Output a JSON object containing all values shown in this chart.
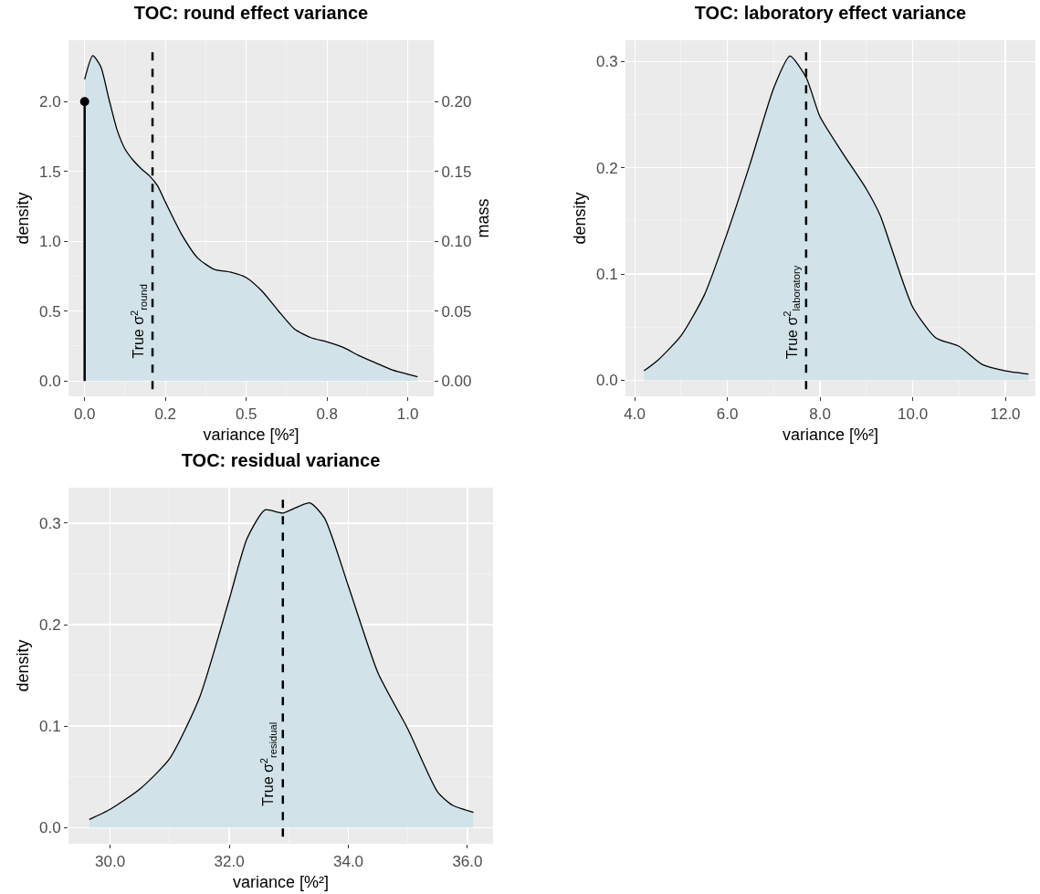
{
  "chart_data": [
    {
      "type": "area",
      "title": "TOC: round effect variance",
      "xlabel": "variance [%²]",
      "ylabel": "density",
      "y2label": "mass",
      "grid": true,
      "xlim": [
        -0.05,
        1.08
      ],
      "xticks": [
        {
          "value": 0,
          "label": "0.0"
        },
        {
          "value": 0.25,
          "label": "0.2"
        },
        {
          "value": 0.5,
          "label": "0.5"
        },
        {
          "value": 0.75,
          "label": "0.8"
        },
        {
          "value": 1,
          "label": "1.0"
        }
      ],
      "ylim": [
        -0.11,
        2.44
      ],
      "yticks": [
        {
          "value": 0,
          "label": "0.0"
        },
        {
          "value": 0.5,
          "label": "0.5"
        },
        {
          "value": 1,
          "label": "1.0"
        },
        {
          "value": 1.5,
          "label": "1.5"
        },
        {
          "value": 2,
          "label": "2.0"
        }
      ],
      "y2lim": [
        -0.011,
        0.244
      ],
      "y2ticks": [
        {
          "value": 0,
          "label": "0.00"
        },
        {
          "value": 0.05,
          "label": "0.05"
        },
        {
          "value": 0.1,
          "label": "0.10"
        },
        {
          "value": 0.15,
          "label": "0.15"
        },
        {
          "value": 0.2,
          "label": "0.20"
        }
      ],
      "ref_lines": [
        {
          "axis": "x",
          "value": 0.21,
          "label": "True σ$^{2}$$_{round}$",
          "color": "#000000",
          "line_style": "dashed"
        }
      ],
      "series": [
        {
          "color": "#d1e3e9",
          "x": [
            0,
            0.025,
            0.05,
            0.075,
            0.1,
            0.125,
            0.15,
            0.175,
            0.2,
            0.225,
            0.25,
            0.3,
            0.35,
            0.4,
            0.45,
            0.5,
            0.55,
            0.6,
            0.65,
            0.7,
            0.75,
            0.8,
            0.85,
            0.9,
            0.95,
            1.03
          ],
          "values": [
            2.16,
            2.33,
            2.25,
            2.02,
            1.8,
            1.66,
            1.58,
            1.52,
            1.47,
            1.4,
            1.28,
            1.05,
            0.88,
            0.8,
            0.78,
            0.74,
            0.64,
            0.5,
            0.37,
            0.31,
            0.28,
            0.24,
            0.18,
            0.13,
            0.08,
            0.03
          ]
        },
        {
          "type": "lollipop",
          "axis": "y2",
          "marker": "circle",
          "color": "#000000",
          "x": [
            0
          ],
          "values": [
            0.2
          ]
        }
      ]
    },
    {
      "type": "area",
      "title": "TOC: laboratory effect variance",
      "xlabel": "variance [%²]",
      "ylabel": "density",
      "grid": true,
      "xlim": [
        3.8,
        12.65
      ],
      "xticks": [
        {
          "value": 4,
          "label": "4.0"
        },
        {
          "value": 6,
          "label": "6.0"
        },
        {
          "value": 8,
          "label": "8.0"
        },
        {
          "value": 10,
          "label": "10.0"
        },
        {
          "value": 12,
          "label": "12.0"
        }
      ],
      "ylim": [
        -0.015,
        0.32
      ],
      "yticks": [
        {
          "value": 0,
          "label": "0.0"
        },
        {
          "value": 0.1,
          "label": "0.1"
        },
        {
          "value": 0.2,
          "label": "0.2"
        },
        {
          "value": 0.3,
          "label": "0.3"
        }
      ],
      "ref_lines": [
        {
          "axis": "x",
          "value": 7.7,
          "label": "True σ$^{2}$$_{laboratory}$",
          "color": "#000000",
          "line_style": "dashed"
        }
      ],
      "series": [
        {
          "color": "#d1e3e9",
          "x": [
            4.2,
            4.5,
            5,
            5.5,
            6,
            6.5,
            7,
            7.35,
            7.7,
            8,
            8.5,
            9,
            9.3,
            9.5,
            10,
            10.5,
            11,
            11.5,
            12,
            12.5
          ],
          "values": [
            0.009,
            0.019,
            0.042,
            0.08,
            0.139,
            0.205,
            0.275,
            0.305,
            0.285,
            0.248,
            0.213,
            0.18,
            0.155,
            0.13,
            0.069,
            0.04,
            0.032,
            0.015,
            0.009,
            0.006
          ]
        }
      ]
    },
    {
      "type": "area",
      "title": "TOC: residual variance",
      "xlabel": "variance [%²]",
      "ylabel": "density",
      "grid": true,
      "xlim": [
        29.3,
        36.43
      ],
      "xticks": [
        {
          "value": 30,
          "label": "30.0"
        },
        {
          "value": 32,
          "label": "32.0"
        },
        {
          "value": 34,
          "label": "34.0"
        },
        {
          "value": 36,
          "label": "36.0"
        }
      ],
      "ylim": [
        -0.016,
        0.335
      ],
      "yticks": [
        {
          "value": 0,
          "label": "0.0"
        },
        {
          "value": 0.1,
          "label": "0.1"
        },
        {
          "value": 0.2,
          "label": "0.2"
        },
        {
          "value": 0.3,
          "label": "0.3"
        }
      ],
      "ref_lines": [
        {
          "axis": "x",
          "value": 32.9,
          "label": "True σ$^{2}$$_{residual}$",
          "color": "#000000",
          "line_style": "dashed"
        }
      ],
      "series": [
        {
          "color": "#d1e3e9",
          "x": [
            29.65,
            30,
            30.5,
            31,
            31.5,
            32,
            32.3,
            32.6,
            32.9,
            33.35,
            33.6,
            34,
            34.5,
            35,
            35.5,
            35.75,
            36.1
          ],
          "values": [
            0.008,
            0.018,
            0.038,
            0.068,
            0.128,
            0.225,
            0.285,
            0.313,
            0.31,
            0.32,
            0.305,
            0.238,
            0.152,
            0.097,
            0.035,
            0.022,
            0.015
          ]
        }
      ]
    }
  ]
}
